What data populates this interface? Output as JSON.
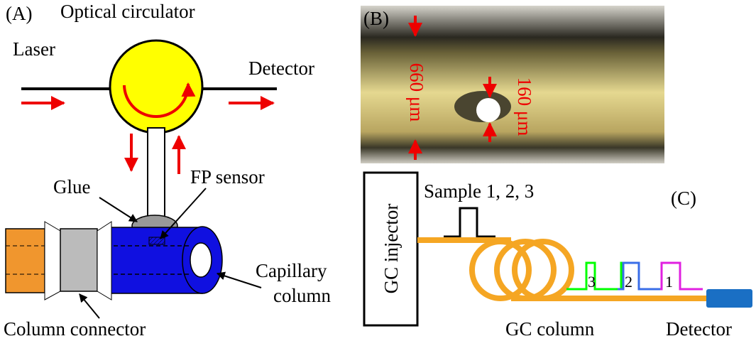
{
  "panel_a": {
    "label": "(A)",
    "circulator": "Optical circulator",
    "laser": "Laser",
    "detector": "Detector",
    "glue": "Glue",
    "sensor": "FP sensor",
    "column_line1": "Capillary",
    "column_line2": "column",
    "connector": "Column connector"
  },
  "panel_b": {
    "label": "(B)",
    "outer_diameter": "660 μm",
    "inner_diameter": "160 μm"
  },
  "panel_c": {
    "label": "(C)",
    "injector": "GC injector",
    "sample": "Sample 1, 2, 3",
    "peaks": [
      "3",
      "2",
      "1"
    ],
    "column": "GC column",
    "detector": "Detector"
  }
}
